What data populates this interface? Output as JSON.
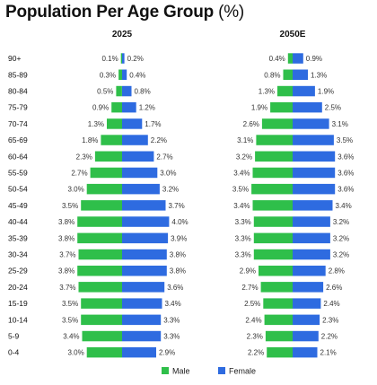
{
  "title": "Population Per Age Group",
  "title_unit": "(%)",
  "chart_data": {
    "type": "bar",
    "title": "Population Per Age Group (%)",
    "categories": [
      "90+",
      "85-89",
      "80-84",
      "75-79",
      "70-74",
      "65-69",
      "60-64",
      "55-59",
      "50-54",
      "45-49",
      "40-44",
      "35-39",
      "30-34",
      "25-29",
      "20-24",
      "15-19",
      "10-14",
      "5-9",
      "0-4"
    ],
    "panels": [
      {
        "name": "2025",
        "series": [
          {
            "name": "Male",
            "values": [
              0.1,
              0.3,
              0.5,
              0.9,
              1.3,
              1.8,
              2.3,
              2.7,
              3.0,
              3.5,
              3.8,
              3.8,
              3.7,
              3.8,
              3.7,
              3.5,
              3.5,
              3.4,
              3.0
            ]
          },
          {
            "name": "Female",
            "values": [
              0.2,
              0.4,
              0.8,
              1.2,
              1.7,
              2.2,
              2.7,
              3.0,
              3.2,
              3.7,
              4.0,
              3.9,
              3.8,
              3.8,
              3.6,
              3.4,
              3.3,
              3.3,
              2.9
            ]
          }
        ]
      },
      {
        "name": "2050E",
        "series": [
          {
            "name": "Male",
            "values": [
              0.4,
              0.8,
              1.3,
              1.9,
              2.6,
              3.1,
              3.2,
              3.4,
              3.5,
              3.4,
              3.3,
              3.3,
              3.3,
              2.9,
              2.7,
              2.5,
              2.4,
              2.3,
              2.2
            ]
          },
          {
            "name": "Female",
            "values": [
              0.9,
              1.3,
              1.9,
              2.5,
              3.1,
              3.5,
              3.6,
              3.6,
              3.6,
              3.4,
              3.2,
              3.2,
              3.2,
              2.8,
              2.6,
              2.4,
              2.3,
              2.2,
              2.1
            ]
          }
        ]
      }
    ],
    "legend": {
      "position": "bottom",
      "items": [
        "Male",
        "Female"
      ]
    },
    "grid": false,
    "colors": {
      "Male": "#2fbf4a",
      "Female": "#2e6be0"
    }
  }
}
